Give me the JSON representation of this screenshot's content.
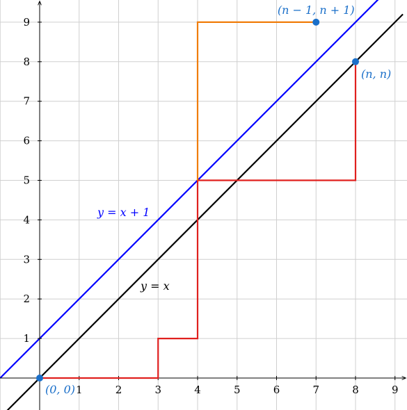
{
  "chart_data": {
    "type": "line",
    "xlim": [
      -1,
      9.2
    ],
    "ylim": [
      -0.8,
      9.5
    ],
    "grid": true,
    "x_ticks": [
      "1",
      "2",
      "3",
      "4",
      "5",
      "6",
      "7",
      "8",
      "9"
    ],
    "y_ticks": [
      "1",
      "2",
      "3",
      "4",
      "5",
      "6",
      "7",
      "8",
      "9"
    ],
    "lines": [
      {
        "label": "y = x",
        "color": "#000000",
        "slope": 1,
        "intercept": 0
      },
      {
        "label": "y = x + 1",
        "color": "#0000ff",
        "slope": 1,
        "intercept": 1
      }
    ],
    "paths": [
      {
        "color": "#e0201e",
        "points": [
          [
            0,
            0
          ],
          [
            3,
            0
          ],
          [
            3,
            1
          ],
          [
            4,
            1
          ],
          [
            4,
            5
          ],
          [
            8,
            5
          ],
          [
            8,
            8
          ]
        ]
      },
      {
        "color": "#f07d0a",
        "points": [
          [
            4,
            5
          ],
          [
            4,
            9
          ],
          [
            7,
            9
          ]
        ]
      }
    ],
    "points": [
      {
        "x": 0,
        "y": 0,
        "label": "(0, 0)",
        "color": "#1a6fc9"
      },
      {
        "x": 7,
        "y": 9,
        "label": "(n − 1, n + 1)",
        "color": "#1a6fc9"
      },
      {
        "x": 8,
        "y": 8,
        "label": "(n, n)",
        "color": "#1a6fc9"
      }
    ]
  }
}
